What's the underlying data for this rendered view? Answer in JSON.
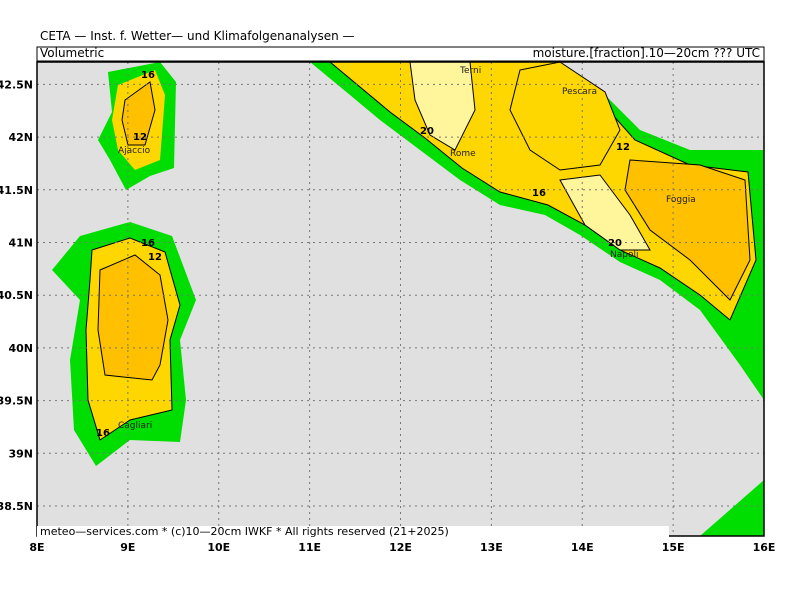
{
  "header": {
    "title": "CETA — Inst. f. Wetter— und Klimafolgenanalysen —",
    "left": "Volumetric",
    "right": "moisture.[fraction].10—20cm ??? UTC"
  },
  "footer": "meteo—services.com * (c)10—20cm IWKF * All rights reserved (21+2025)",
  "x_labels": [
    "8E",
    "9E",
    "10E",
    "11E",
    "12E",
    "13E",
    "14E",
    "15E",
    "16E"
  ],
  "y_labels": [
    "38.5N",
    "39N",
    "39.5N",
    "40N",
    "40.5N",
    "41N",
    "41.5N",
    "42N",
    "42.5N"
  ],
  "places": [
    "Terni",
    "Pescara",
    "Rome",
    "Foggia",
    "Napoli",
    "Ajaccio",
    "Cagliari"
  ],
  "contour_labels": [
    "16",
    "12",
    "16",
    "12",
    "16",
    "20",
    "16",
    "12",
    "20"
  ]
}
